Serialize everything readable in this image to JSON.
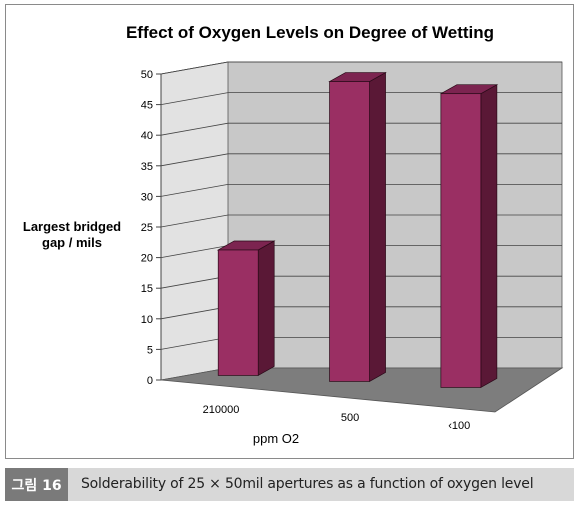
{
  "chart_data": {
    "type": "bar",
    "title": "Effect of Oxygen Levels on Degree of Wetting",
    "ylabel_lines": [
      "Largest bridged",
      "gap / mils"
    ],
    "xlabel": "ppm O2",
    "categories": [
      "210000",
      "500",
      "‹100"
    ],
    "values": [
      20.5,
      49,
      48
    ],
    "ylim": [
      0,
      50
    ],
    "yticks": [
      0,
      5,
      10,
      15,
      20,
      25,
      30,
      35,
      40,
      45,
      50
    ],
    "grid": true,
    "legend": "none",
    "three_d": true,
    "colors": {
      "bar_front": "#9a2f63",
      "bar_side": "#5a1836",
      "bar_top": "#7c2450",
      "wall": "#c8c8c8",
      "floor": "#7d7d7d"
    }
  },
  "caption": {
    "badge": "그림 16",
    "text": "Solderability of 25 × 50mil apertures as a function of oxygen level"
  }
}
